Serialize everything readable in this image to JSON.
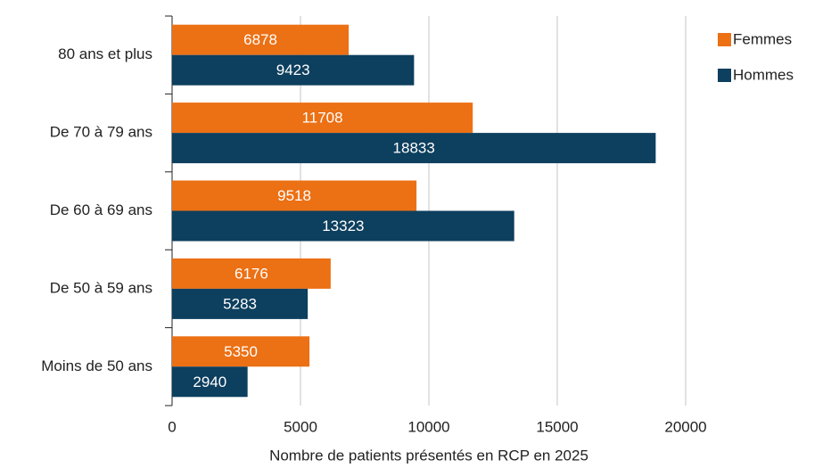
{
  "chart_data": {
    "type": "bar",
    "orientation": "horizontal",
    "x_label": "Nombre de patients présentés en RCP en 2025",
    "categories": [
      "80 ans et plus",
      "De 70 à 79 ans",
      "De 60 à 69 ans",
      "De 50 à 59 ans",
      "Moins de 50 ans"
    ],
    "series": [
      {
        "name": "Femmes",
        "color": "#ec7014",
        "values": [
          6878,
          11708,
          9518,
          6176,
          5350
        ]
      },
      {
        "name": "Hommes",
        "color": "#0d3f5e",
        "values": [
          9423,
          18833,
          13323,
          5283,
          2940
        ]
      }
    ],
    "xlim": [
      0,
      20000
    ],
    "xticks": [
      0,
      5000,
      10000,
      15000,
      20000
    ],
    "grid": true,
    "legend": "right"
  }
}
